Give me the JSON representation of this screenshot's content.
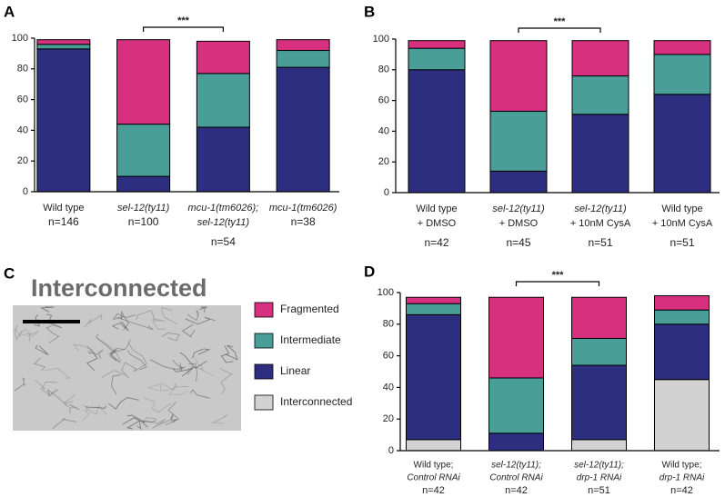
{
  "chart_data": [
    {
      "type": "stacked_bar",
      "panel_label": "A",
      "categories": [
        [
          "Wild type"
        ],
        [
          "sel-12(ty11)"
        ],
        [
          "mcu-1(tm6026);",
          "sel-12(ty11)"
        ],
        [
          "mcu-1(tm6026)"
        ]
      ],
      "sample_sizes": [
        "n=146",
        "n=100",
        "n=54",
        "n=38"
      ],
      "series": [
        {
          "color": "#2e2e80",
          "values": [
            93,
            10,
            42,
            81
          ]
        },
        {
          "color": "#4a9e98",
          "values": [
            3,
            34,
            35,
            11
          ]
        },
        {
          "color": "#d6307f",
          "values": [
            3,
            55,
            21,
            7
          ]
        }
      ],
      "ylim": [
        0,
        100
      ],
      "yticks": [
        0,
        20,
        40,
        60,
        80,
        100
      ],
      "significance": {
        "text": "***",
        "between": [
          1,
          2
        ]
      }
    },
    {
      "type": "stacked_bar",
      "panel_label": "B",
      "categories": [
        [
          "Wild type",
          "+ DMSO"
        ],
        [
          "sel-12(ty11)",
          "+ DMSO"
        ],
        [
          "sel-12(ty11)",
          "+ 10nM CysA"
        ],
        [
          "Wild type",
          "+ 10nM CysA"
        ]
      ],
      "sample_sizes": [
        "n=42",
        "n=45",
        "n=51",
        "n=51"
      ],
      "series": [
        {
          "color": "#2e2e80",
          "values": [
            80,
            14,
            51,
            64
          ]
        },
        {
          "color": "#4a9e98",
          "values": [
            14,
            39,
            25,
            26
          ]
        },
        {
          "color": "#d6307f",
          "values": [
            5,
            46,
            23,
            9
          ]
        }
      ],
      "ylim": [
        0,
        100
      ],
      "yticks": [
        0,
        20,
        40,
        60,
        80,
        100
      ],
      "significance": {
        "text": "***",
        "between": [
          1,
          2
        ]
      }
    },
    {
      "type": "stacked_bar",
      "panel_label": "D",
      "categories": [
        [
          "Wild type;",
          "Control RNAi"
        ],
        [
          "sel-12(ty11);",
          "Control RNAi"
        ],
        [
          "sel-12(ty11);",
          "drp-1 RNAi"
        ],
        [
          "Wild type;",
          "drp-1 RNAi"
        ]
      ],
      "sample_sizes": [
        "n=42",
        "n=42",
        "n=51",
        "n=42"
      ],
      "series": [
        {
          "name": "Interconnected",
          "color": "#d2d2d2",
          "values": [
            7,
            0,
            7,
            45
          ]
        },
        {
          "name": "Linear",
          "color": "#2e2e80",
          "values": [
            79,
            11,
            47,
            35
          ]
        },
        {
          "name": "Intermediate",
          "color": "#4a9e98",
          "values": [
            7,
            35,
            17,
            9
          ]
        },
        {
          "name": "Fragmented",
          "color": "#d6307f",
          "values": [
            4,
            51,
            26,
            9
          ]
        }
      ],
      "ylim": [
        0,
        100
      ],
      "yticks": [
        0,
        20,
        40,
        60,
        80,
        100
      ],
      "significance": {
        "text": "***",
        "between": [
          1,
          2
        ]
      }
    }
  ],
  "image_panel": {
    "panel_label": "C",
    "title": "Interconnected"
  }
}
